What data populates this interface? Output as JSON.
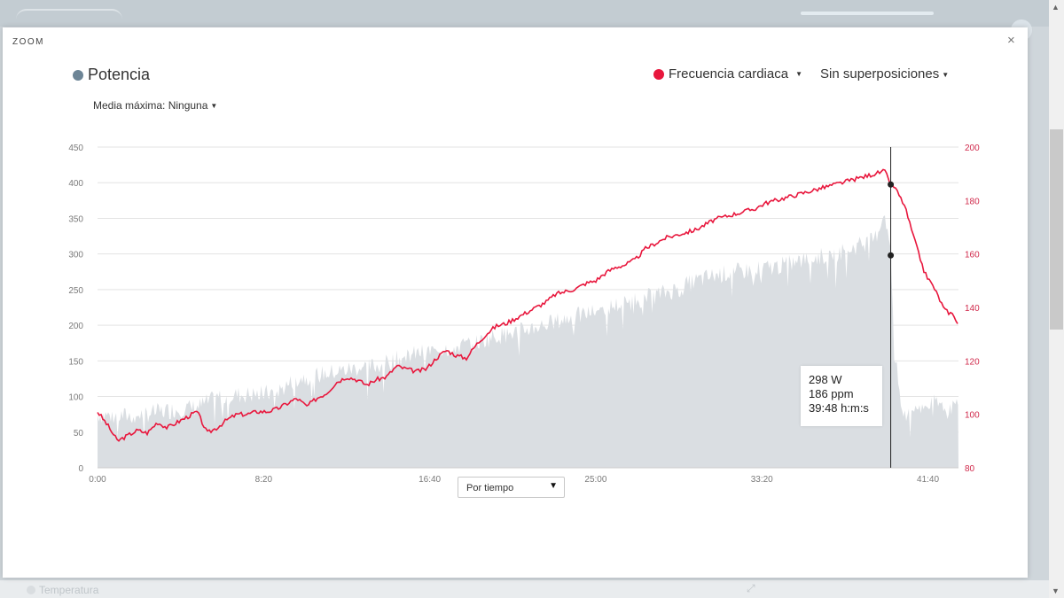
{
  "modal": {
    "title": "ZOOM",
    "close": "×"
  },
  "legend": {
    "power": "Potencia",
    "heart_rate": "Frecuencia cardiaca",
    "overlay": "Sin superposiciones",
    "media_maxima": "Media máxima: Ninguna"
  },
  "background": {
    "temperature": "Temperatura"
  },
  "tooltip": {
    "power": "298 W",
    "heart_rate": "186 ppm",
    "time": "39:48 h:m:s"
  },
  "select": {
    "value": "Por tiempo"
  },
  "colors": {
    "power_fill": "#dadee2",
    "hr_line": "#e8173d",
    "power_dot": "#6d8596"
  },
  "chart_data": {
    "type": "area",
    "x_unit": "minutes",
    "xlim": [
      0,
      43.2
    ],
    "ylim_left": [
      0,
      450
    ],
    "ylim_right": [
      80,
      200
    ],
    "x_ticks": [
      "0:00",
      "8:20",
      "16:40",
      "25:00",
      "33:20",
      "41:40"
    ],
    "y_ticks_left": [
      "0",
      "50",
      "100",
      "150",
      "200",
      "250",
      "300",
      "350",
      "400",
      "450"
    ],
    "y_ticks_right": [
      "80",
      "100",
      "120",
      "140",
      "160",
      "180",
      "200"
    ],
    "grid": true,
    "cursor": {
      "x": 39.8,
      "power": 298,
      "heart_rate": 186
    },
    "series": [
      {
        "name": "Potencia",
        "axis": "left",
        "x": [
          0,
          1,
          2,
          3,
          4,
          5,
          6,
          7,
          8,
          9,
          10,
          11,
          12,
          13,
          14,
          15,
          16,
          17,
          18,
          19,
          20,
          21,
          22,
          23,
          24,
          25,
          26,
          27,
          28,
          29,
          30,
          31,
          32,
          33,
          34,
          35,
          36,
          37,
          38,
          39,
          39.5,
          39.8,
          40,
          40.4,
          41,
          42,
          43.2
        ],
        "values": [
          75,
          72,
          74,
          78,
          82,
          85,
          98,
          102,
          103,
          106,
          125,
          130,
          135,
          140,
          143,
          152,
          160,
          165,
          170,
          175,
          185,
          190,
          198,
          205,
          212,
          220,
          228,
          235,
          242,
          250,
          262,
          270,
          275,
          278,
          282,
          288,
          295,
          300,
          310,
          320,
          360,
          298,
          160,
          70,
          85,
          90,
          85
        ]
      },
      {
        "name": "Frecuencia cardiaca",
        "axis": "right",
        "x": [
          0,
          0.5,
          1,
          1.5,
          2,
          2.5,
          3,
          3.5,
          4,
          4.5,
          5,
          5.5,
          6,
          6.5,
          7,
          7.5,
          8,
          8.5,
          9,
          9.5,
          10,
          10.5,
          11,
          11.5,
          12,
          12.5,
          13,
          13.5,
          14,
          14.5,
          15,
          15.5,
          16,
          16.5,
          17,
          17.5,
          18,
          18.5,
          19,
          19.5,
          20,
          20.5,
          21,
          21.5,
          22,
          22.5,
          23,
          23.5,
          24,
          24.5,
          25,
          25.5,
          26,
          26.5,
          27,
          27.5,
          28,
          28.5,
          29,
          29.5,
          30,
          30.5,
          31,
          31.5,
          32,
          32.5,
          33,
          33.5,
          34,
          34.5,
          35,
          35.5,
          36,
          36.5,
          37,
          37.5,
          38,
          38.5,
          39,
          39.5,
          39.8,
          40,
          40.5,
          41,
          41.5,
          42,
          42.5,
          43,
          43.2
        ],
        "values": [
          101,
          96,
          90,
          92,
          94,
          93,
          97,
          95,
          97,
          99,
          101,
          93,
          95,
          98,
          100,
          100,
          101,
          101,
          102,
          104,
          106,
          103,
          106,
          108,
          112,
          114,
          113,
          111,
          113,
          114,
          118,
          117,
          116,
          117,
          121,
          124,
          122,
          121,
          126,
          130,
          133,
          134,
          136,
          138,
          140,
          142,
          145,
          146,
          147,
          149,
          150,
          153,
          155,
          156,
          158,
          162,
          164,
          166,
          167,
          168,
          169,
          171,
          173,
          174,
          175,
          176,
          177,
          179,
          180,
          181,
          182,
          183,
          184,
          185,
          186,
          187,
          188,
          189,
          190,
          191,
          186,
          185,
          178,
          165,
          153,
          147,
          139,
          137,
          133
        ]
      }
    ]
  }
}
